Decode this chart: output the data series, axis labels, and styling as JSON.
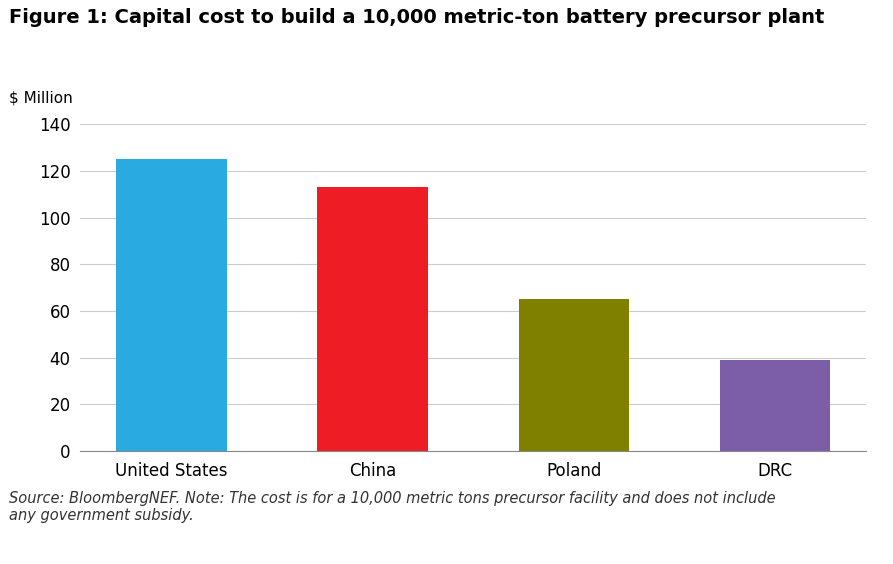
{
  "title": "Figure 1: Capital cost to build a 10,000 metric-ton battery precursor plant",
  "ylabel": "$ Million",
  "categories": [
    "United States",
    "China",
    "Poland",
    "DRC"
  ],
  "values": [
    125,
    113,
    65,
    39
  ],
  "bar_colors": [
    "#29ABE2",
    "#EE1C25",
    "#808000",
    "#7B5EA7"
  ],
  "ylim": [
    0,
    140
  ],
  "yticks": [
    0,
    20,
    40,
    60,
    80,
    100,
    120,
    140
  ],
  "footnote_line1": "Source: BloombergNEF. Note: The cost is for a 10,000 metric tons precursor facility and does not include",
  "footnote_line2": "any government subsidy.",
  "background_color": "#FFFFFF",
  "title_fontsize": 14,
  "ylabel_fontsize": 11,
  "tick_fontsize": 12,
  "footnote_fontsize": 10.5,
  "grid_color": "#CCCCCC",
  "grid_linewidth": 0.8
}
